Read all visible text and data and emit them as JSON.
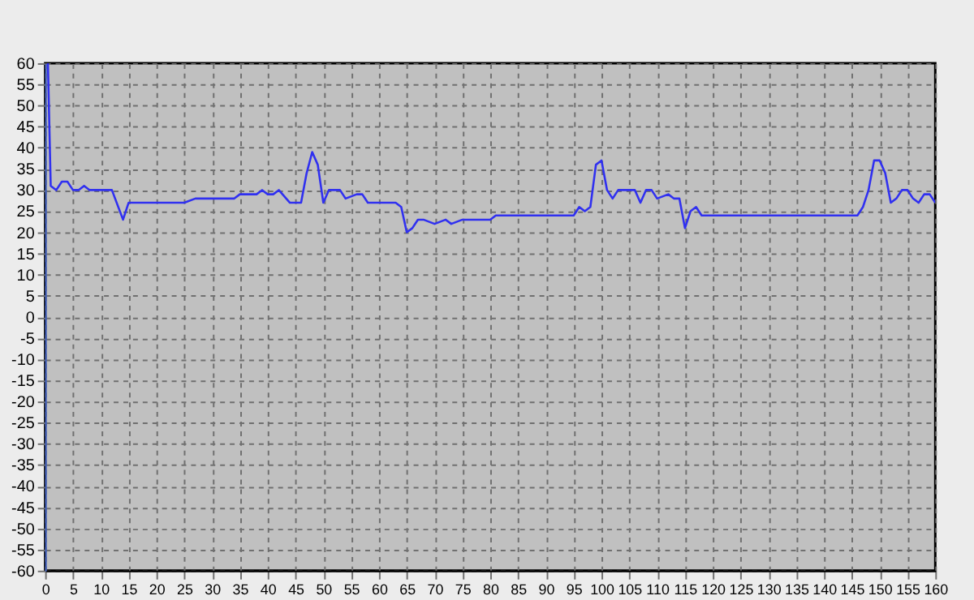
{
  "chart_data": {
    "type": "line",
    "x": [
      0.5,
      1,
      2,
      3,
      4,
      5,
      6,
      7,
      8,
      10,
      12,
      14,
      15,
      20,
      25,
      27,
      30,
      34,
      35,
      38,
      39,
      40,
      41,
      42,
      44,
      46,
      47,
      48,
      49,
      50,
      51,
      53,
      54,
      56,
      57,
      58,
      63,
      64,
      65,
      66,
      67,
      68,
      70,
      72,
      73,
      75,
      80,
      81,
      95,
      96,
      97,
      98,
      99,
      100,
      101,
      102,
      103,
      106,
      107,
      108,
      109,
      110,
      112,
      113,
      114,
      115,
      116,
      117,
      118,
      145,
      146,
      147,
      148,
      149,
      150,
      151,
      152,
      153,
      154,
      155,
      156,
      157,
      158,
      159,
      160
    ],
    "series": [
      {
        "color": "#3030f0",
        "values": [
          60,
          31,
          30,
          32,
          32,
          30,
          30,
          31,
          30,
          30,
          30,
          23,
          27,
          27,
          27,
          28,
          28,
          28,
          29,
          29,
          30,
          29,
          29,
          30,
          27,
          27,
          34,
          39,
          36,
          27,
          30,
          30,
          28,
          29,
          29,
          27,
          27,
          26,
          20,
          21,
          23,
          23,
          22,
          23,
          22,
          23,
          23,
          24,
          24,
          26,
          25,
          26,
          36,
          37,
          30,
          28,
          30,
          30,
          27,
          30,
          30,
          28,
          29,
          28,
          28,
          21,
          25,
          26,
          24,
          24,
          24,
          26,
          30,
          37,
          37,
          34,
          27,
          28,
          30,
          30,
          28,
          27,
          29,
          29,
          27
        ]
      }
    ],
    "xlim": [
      0,
      160
    ],
    "xticks": [
      0,
      5,
      10,
      15,
      20,
      25,
      30,
      35,
      40,
      45,
      50,
      55,
      60,
      65,
      70,
      75,
      80,
      85,
      90,
      95,
      100,
      105,
      110,
      115,
      120,
      125,
      130,
      135,
      140,
      145,
      150,
      155,
      160
    ],
    "ylim": [
      -60,
      60
    ],
    "yticks": [
      -60,
      -55,
      -50,
      -45,
      -40,
      -35,
      -30,
      -25,
      -20,
      -15,
      -10,
      -5,
      0,
      5,
      10,
      15,
      20,
      25,
      30,
      35,
      40,
      45,
      50,
      55,
      60
    ],
    "grid": true,
    "legend": false,
    "marker": "none",
    "line_style": "solid"
  }
}
